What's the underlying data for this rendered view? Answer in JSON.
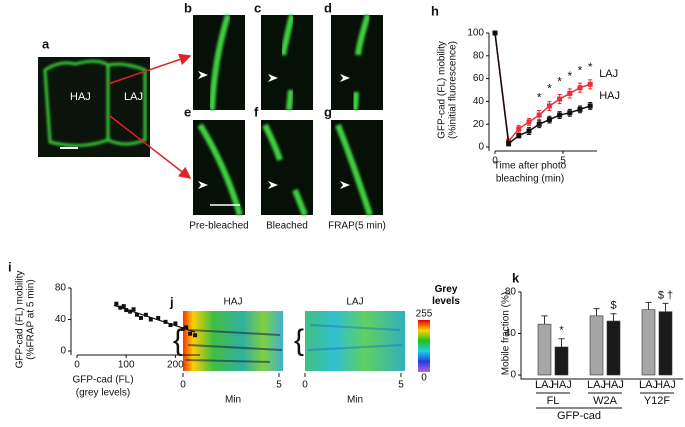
{
  "panels": {
    "a": {
      "label": "a",
      "left": "HAJ",
      "right": "LAJ"
    },
    "b": {
      "label": "b"
    },
    "c": {
      "label": "c"
    },
    "d": {
      "label": "d"
    },
    "e": {
      "label": "e"
    },
    "f": {
      "label": "f"
    },
    "g": {
      "label": "g"
    },
    "captions": [
      "Pre-bleached",
      "Bleached",
      "FRAP(5 min)"
    ],
    "j": {
      "label": "j",
      "titles": [
        "HAJ",
        "LAJ"
      ],
      "xticks": [
        0,
        5
      ],
      "xlabel": "Min",
      "colorbar_title": "Grey levels",
      "colorbar_ticks": [
        255,
        0
      ]
    }
  },
  "chart_data": [
    {
      "type": "line",
      "panel": "h",
      "ylabel": [
        "GFP-cad (FL) mobility",
        "(%initial fluorescence)"
      ],
      "xlabel": [
        "Time after photo",
        "bleaching (min)"
      ],
      "x": [
        0,
        1,
        1.75,
        2.5,
        3.25,
        4,
        4.75,
        5.5,
        6.25,
        7
      ],
      "series": [
        {
          "name": "LAJ",
          "color": "#e8303a",
          "values": [
            100,
            5,
            16,
            22,
            28,
            36,
            42,
            47,
            52,
            55
          ],
          "errors": [
            0,
            2,
            3,
            3,
            4,
            4,
            4,
            4,
            4,
            4
          ],
          "markers": [
            null,
            null,
            null,
            null,
            "*",
            "*",
            "*",
            "*",
            "*",
            "*"
          ]
        },
        {
          "name": "HAJ",
          "color": "#111111",
          "values": [
            100,
            3,
            10,
            14,
            20,
            24,
            28,
            30,
            33,
            36
          ],
          "errors": [
            0,
            2,
            2,
            3,
            3,
            3,
            3,
            3,
            3,
            3
          ]
        }
      ],
      "xlim": [
        0,
        7.5
      ],
      "xticks": [
        0,
        5
      ],
      "ylim": [
        0,
        100
      ],
      "yticks": [
        0,
        20,
        40,
        60,
        80,
        100
      ]
    },
    {
      "type": "scatter",
      "panel": "i",
      "ylabel": [
        "GFP-cad (FL) mobility",
        "(%FRAP at 5 min)"
      ],
      "xlabel": [
        "GFP-cad (FL)",
        "(grey levels)"
      ],
      "x": [
        80,
        88,
        95,
        100,
        108,
        115,
        122,
        130,
        140,
        150,
        165,
        180,
        190,
        200,
        215,
        222,
        230,
        240
      ],
      "values": [
        60,
        55,
        57,
        52,
        50,
        53,
        46,
        42,
        46,
        40,
        42,
        37,
        33,
        35,
        28,
        30,
        22,
        20
      ],
      "color": "#111111",
      "trendline": {
        "x": [
          75,
          240
        ],
        "values": [
          58,
          24
        ]
      },
      "xlim": [
        0,
        250
      ],
      "xticks": [
        0,
        100,
        200
      ],
      "ylim": [
        0,
        80
      ],
      "yticks": [
        0,
        40,
        80
      ]
    },
    {
      "type": "bar",
      "panel": "k",
      "ylabel": "Mobile fraction (%)",
      "xlabel": "GFP-cad",
      "categories": [
        "FL",
        "W2A",
        "Y12F"
      ],
      "series": [
        {
          "name": "LAJ",
          "color": "#a6a6a6",
          "values": [
            49,
            57,
            63
          ],
          "errors": [
            8,
            7,
            7
          ]
        },
        {
          "name": "HAJ",
          "color": "#1a1a1a",
          "values": [
            27,
            52,
            61
          ],
          "errors": [
            8,
            7,
            8
          ],
          "markers": [
            "*",
            "$",
            "$ †"
          ]
        }
      ],
      "ylim": [
        0,
        80
      ],
      "yticks": [
        0,
        40,
        80
      ]
    }
  ]
}
